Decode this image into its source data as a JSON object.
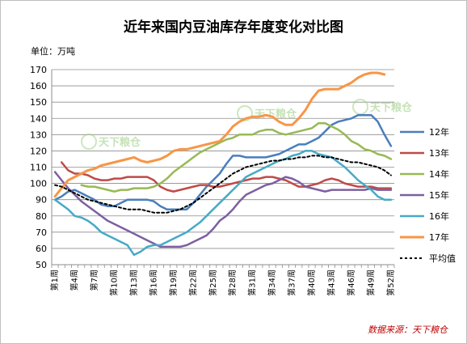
{
  "chart_data": {
    "type": "line",
    "title": "近年来国内豆油库存年度变化对比图",
    "unit_label": "单位：万吨",
    "source": "数据来源：天下粮仓",
    "watermark": "天下粮仓",
    "ylim": [
      50,
      170
    ],
    "yticks": [
      50,
      60,
      70,
      80,
      90,
      100,
      110,
      120,
      130,
      140,
      150,
      160,
      170
    ],
    "grid": true,
    "legend_position": "right",
    "x_tick_labels": [
      "第1周",
      "第4周",
      "第7周",
      "第10周",
      "第13周",
      "第16周",
      "第19周",
      "第22周",
      "第25周",
      "第28周",
      "第31周",
      "第34周",
      "第37周",
      "第40周",
      "第43周",
      "第46周",
      "第49周",
      "第52周"
    ],
    "x_tick_weeks": [
      1,
      4,
      7,
      10,
      13,
      16,
      19,
      22,
      25,
      28,
      31,
      34,
      37,
      40,
      43,
      46,
      49,
      52
    ],
    "weeks": 52,
    "series": [
      {
        "name": "12年",
        "color": "#4a7ebb",
        "width": 2.5,
        "dash": "",
        "values": [
          90,
          92,
          95,
          96,
          94,
          92,
          90,
          87,
          86,
          86,
          88,
          90,
          90,
          90,
          90,
          89,
          86,
          84,
          84,
          84,
          84,
          88,
          93,
          98,
          102,
          106,
          112,
          117,
          117,
          116,
          116,
          116,
          116,
          117,
          118,
          120,
          122,
          124,
          124,
          126,
          128,
          132,
          136,
          138,
          139,
          140,
          142,
          142,
          142,
          138,
          130,
          123
        ]
      },
      {
        "name": "13年",
        "color": "#be4b48",
        "width": 2.5,
        "dash": "",
        "values": [
          null,
          113,
          108,
          106,
          106,
          105,
          103,
          102,
          102,
          103,
          103,
          104,
          104,
          104,
          104,
          102,
          98,
          96,
          95,
          96,
          97,
          98,
          99,
          99,
          98,
          98,
          99,
          100,
          101,
          102,
          103,
          103,
          104,
          104,
          103,
          102,
          100,
          98,
          98,
          99,
          100,
          102,
          103,
          102,
          100,
          99,
          98,
          98,
          98,
          97,
          97,
          97
        ]
      },
      {
        "name": "14年",
        "color": "#98b954",
        "width": 2.5,
        "dash": "",
        "values": [
          null,
          null,
          null,
          null,
          99,
          98,
          98,
          97,
          96,
          95,
          96,
          96,
          97,
          97,
          97,
          98,
          100,
          103,
          107,
          110,
          113,
          116,
          119,
          121,
          123,
          125,
          127,
          128,
          130,
          130,
          130,
          132,
          133,
          133,
          131,
          130,
          131,
          132,
          133,
          134,
          137,
          137,
          135,
          133,
          130,
          126,
          124,
          121,
          120,
          118,
          117,
          115
        ]
      },
      {
        "name": "15年",
        "color": "#7d60a0",
        "width": 2.5,
        "dash": "",
        "values": [
          107,
          102,
          97,
          93,
          89,
          86,
          83,
          80,
          77,
          75,
          73,
          71,
          69,
          67,
          65,
          63,
          61,
          61,
          61,
          61,
          62,
          64,
          66,
          68,
          72,
          77,
          80,
          84,
          89,
          93,
          95,
          97,
          99,
          100,
          102,
          104,
          103,
          101,
          98,
          97,
          96,
          95,
          96,
          96,
          96,
          96,
          96,
          96,
          97,
          96,
          96,
          96
        ]
      },
      {
        "name": "16年",
        "color": "#46aac5",
        "width": 2.5,
        "dash": "",
        "values": [
          90,
          87,
          84,
          80,
          79,
          77,
          74,
          70,
          68,
          66,
          64,
          62,
          56,
          58,
          61,
          62,
          62,
          64,
          66,
          68,
          70,
          73,
          76,
          80,
          84,
          88,
          92,
          96,
          100,
          104,
          106,
          108,
          110,
          112,
          114,
          115,
          117,
          118,
          120,
          120,
          118,
          117,
          116,
          113,
          110,
          106,
          102,
          99,
          96,
          92,
          90,
          90
        ]
      },
      {
        "name": "17年",
        "color": "#f79646",
        "width": 3,
        "dash": "",
        "values": [
          92,
          97,
          102,
          104,
          106,
          108,
          109,
          111,
          112,
          113,
          114,
          115,
          116,
          114,
          113,
          114,
          115,
          117,
          120,
          121,
          121,
          122,
          123,
          124,
          125,
          126,
          130,
          135,
          138,
          140,
          141,
          141,
          142,
          141,
          138,
          136,
          136,
          140,
          145,
          152,
          157,
          158,
          158,
          158,
          160,
          162,
          165,
          167,
          168,
          168,
          167,
          null
        ]
      },
      {
        "name": "平均值",
        "color": "#000000",
        "width": 2,
        "dash": "3,3",
        "values": [
          99,
          98,
          96,
          94,
          92,
          90,
          89,
          88,
          87,
          86,
          85,
          84,
          84,
          84,
          83,
          82,
          82,
          82,
          83,
          84,
          86,
          88,
          91,
          94,
          97,
          100,
          103,
          106,
          108,
          110,
          111,
          112,
          113,
          114,
          114,
          115,
          115,
          116,
          116,
          117,
          117,
          116,
          116,
          115,
          114,
          113,
          113,
          112,
          111,
          110,
          108,
          105
        ]
      }
    ]
  }
}
